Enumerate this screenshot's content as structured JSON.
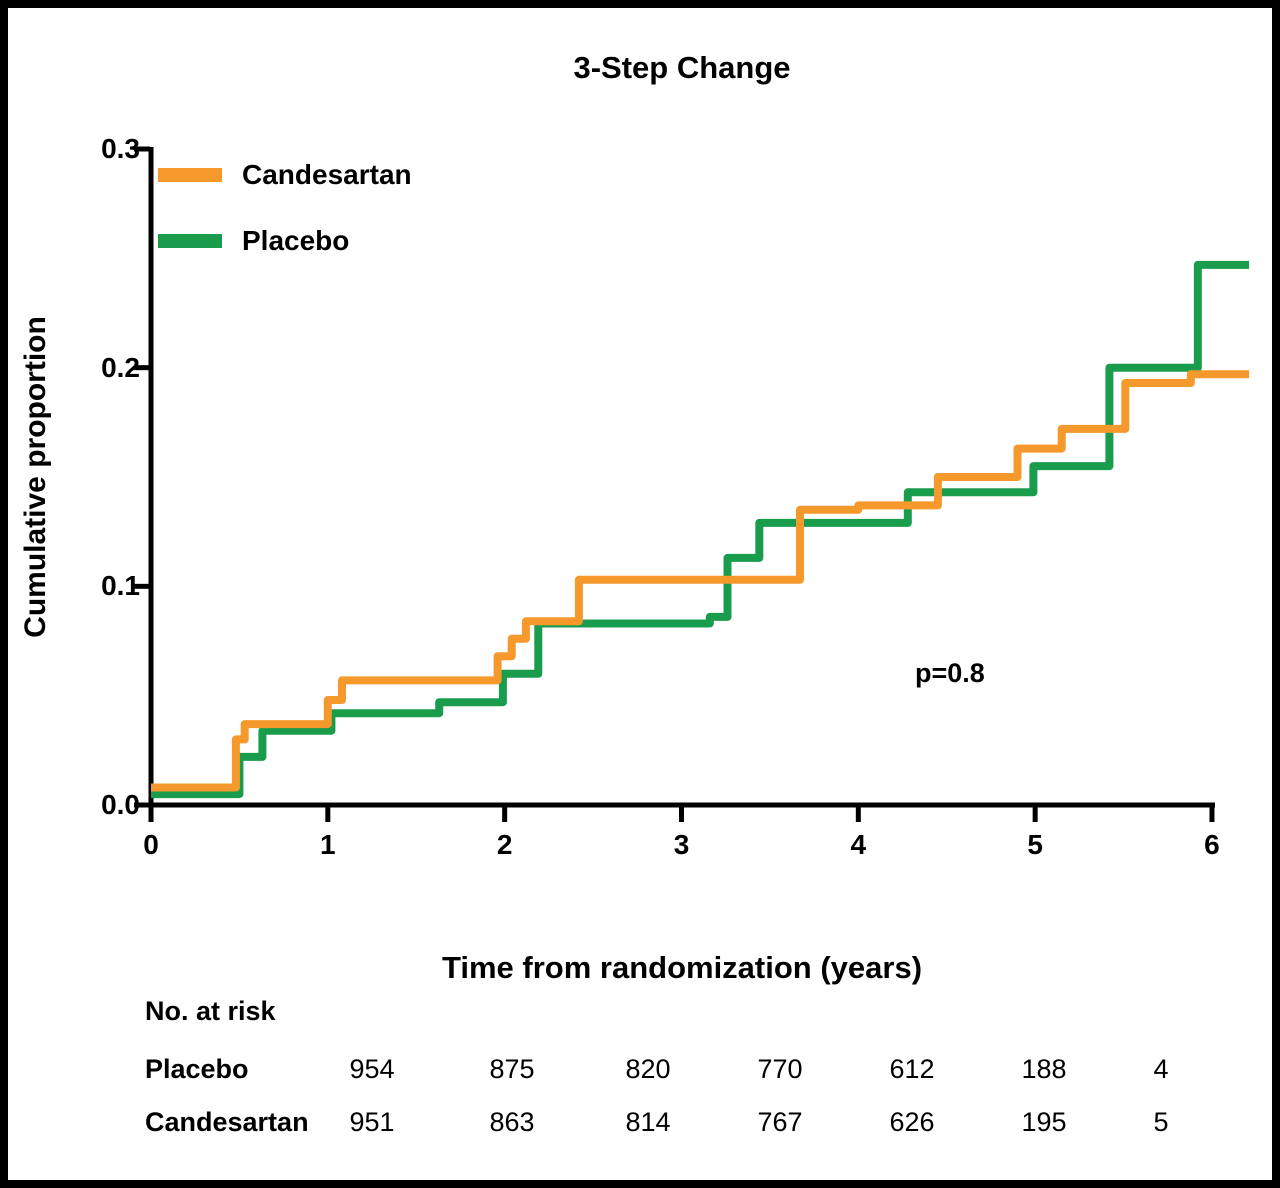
{
  "figure": {
    "title": "3-Step Change",
    "y_axis_title": "Cumulative proportion",
    "x_axis_title": "Time from randomization (years)",
    "p_value_text": "p=0.8"
  },
  "legend": {
    "items": [
      {
        "label": "Candesartan",
        "color": "#F6992C"
      },
      {
        "label": "Placebo",
        "color": "#1A9C4D"
      }
    ]
  },
  "risk_table": {
    "heading": "No. at risk",
    "rows": [
      {
        "label": "Placebo",
        "values": [
          "954",
          "875",
          "820",
          "770",
          "612",
          "188",
          "4"
        ]
      },
      {
        "label": "Candesartan",
        "values": [
          "951",
          "863",
          "814",
          "767",
          "626",
          "195",
          "5"
        ]
      }
    ]
  },
  "chart_data": {
    "type": "line",
    "subtype": "kaplan-meier-step",
    "title": "3-Step Change",
    "xlabel": "Time from randomization (years)",
    "ylabel": "Cumulative proportion",
    "xlim": [
      0,
      6.25
    ],
    "ylim": [
      0,
      0.3
    ],
    "x_ticks": [
      0,
      1,
      2,
      3,
      4,
      5,
      6
    ],
    "x_tick_labels": [
      "0",
      "1",
      "2",
      "3",
      "4",
      "5",
      "6"
    ],
    "y_ticks": [
      0.0,
      0.1,
      0.2,
      0.3
    ],
    "y_tick_labels": [
      "0.0",
      "0.1",
      "0.2",
      "0.3"
    ],
    "grid": false,
    "legend_position": "upper-left-inside",
    "annotation": {
      "text": "p=0.8",
      "x": 4.3,
      "y": 0.06
    },
    "axis_color": "#000000",
    "series": [
      {
        "name": "Candesartan",
        "color": "#F6992C",
        "points": [
          [
            0,
            0.008
          ],
          [
            0.48,
            0.03
          ],
          [
            0.53,
            0.037
          ],
          [
            1.0,
            0.048
          ],
          [
            1.08,
            0.057
          ],
          [
            1.96,
            0.068
          ],
          [
            2.04,
            0.076
          ],
          [
            2.12,
            0.084
          ],
          [
            2.42,
            0.103
          ],
          [
            3.67,
            0.135
          ],
          [
            4.0,
            0.137
          ],
          [
            4.45,
            0.15
          ],
          [
            4.9,
            0.163
          ],
          [
            5.15,
            0.172
          ],
          [
            5.51,
            0.193
          ],
          [
            5.88,
            0.197
          ],
          [
            6.21,
            0.197
          ]
        ]
      },
      {
        "name": "Placebo",
        "color": "#1A9C4D",
        "points": [
          [
            0,
            0.005
          ],
          [
            0.5,
            0.022
          ],
          [
            0.63,
            0.034
          ],
          [
            1.02,
            0.042
          ],
          [
            1.63,
            0.047
          ],
          [
            1.99,
            0.06
          ],
          [
            2.19,
            0.083
          ],
          [
            3.16,
            0.086
          ],
          [
            3.26,
            0.113
          ],
          [
            3.44,
            0.129
          ],
          [
            4.28,
            0.143
          ],
          [
            4.99,
            0.155
          ],
          [
            5.42,
            0.2
          ],
          [
            5.92,
            0.247
          ],
          [
            6.21,
            0.247
          ]
        ]
      }
    ]
  }
}
